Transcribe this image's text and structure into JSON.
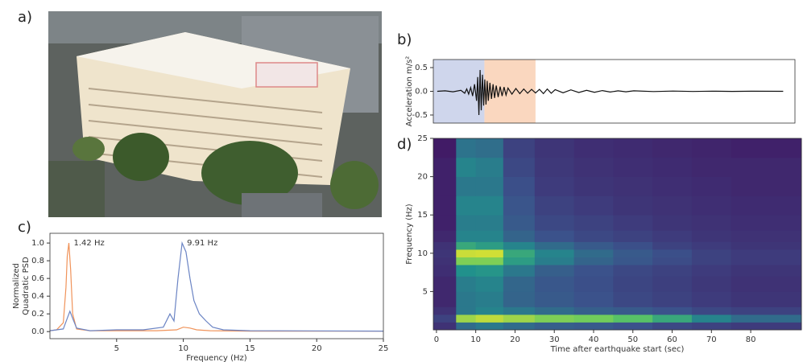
{
  "chart_data": [
    {
      "type": "image",
      "panel_label": "a)"
    },
    {
      "type": "line",
      "panel_label": "b)",
      "ylabel": "Acceleration m/s²",
      "xlim": [
        -1,
        91
      ],
      "ylim": [
        -0.67,
        0.67
      ],
      "yticks": [
        0.5,
        {
          "value": 0,
          "label": "0.0"
        },
        -0.5
      ],
      "spans": [
        {
          "x": [
            -1,
            12
          ],
          "color": "#cfd6ec"
        },
        {
          "x": [
            12,
            25
          ],
          "color": "#fad7bf"
        }
      ],
      "series": [
        {
          "color": "#111111",
          "x": [
            0,
            2,
            4,
            6,
            7,
            7.5,
            8,
            8.5,
            9,
            9.5,
            10,
            10.3,
            10.6,
            10.9,
            11.2,
            11.5,
            11.8,
            12.1,
            12.4,
            12.7,
            13,
            13.4,
            13.8,
            14.2,
            14.6,
            15,
            15.5,
            16,
            16.5,
            17,
            17.5,
            18,
            19,
            20,
            21,
            22,
            23,
            24,
            25,
            26,
            27,
            28,
            29,
            30,
            32,
            34,
            36,
            38,
            40,
            42,
            44,
            46,
            48,
            50,
            55,
            60,
            65,
            70,
            75,
            80,
            88
          ],
          "values": [
            0,
            0.01,
            -0.01,
            0.02,
            -0.04,
            0.05,
            -0.06,
            0.08,
            -0.1,
            0.15,
            -0.2,
            0.3,
            -0.5,
            0.45,
            -0.4,
            0.35,
            -0.3,
            0.25,
            -0.28,
            0.22,
            -0.2,
            0.18,
            -0.16,
            0.15,
            -0.14,
            0.12,
            -0.12,
            0.1,
            -0.1,
            0.09,
            -0.08,
            0.07,
            -0.06,
            0.06,
            -0.05,
            0.05,
            -0.04,
            0.04,
            -0.035,
            0.04,
            -0.05,
            0.05,
            -0.04,
            0.035,
            -0.03,
            0.03,
            -0.025,
            0.02,
            -0.02,
            0.015,
            -0.015,
            0.01,
            -0.01,
            0.01,
            -0.005,
            0.005,
            -0.003,
            0.003,
            -0.002,
            0.002,
            0
          ]
        }
      ]
    },
    {
      "type": "line",
      "panel_label": "c)",
      "ylabel": [
        "Normalized",
        "Quadratic PSD"
      ],
      "xlabel": "Frequency (Hz)",
      "xlim": [
        0,
        25
      ],
      "ylim": [
        -0.08,
        1.11
      ],
      "xticks": [
        5,
        10,
        15,
        20,
        25
      ],
      "yticks": [
        {
          "value": 0,
          "label": "0.0"
        },
        0.2,
        0.4,
        0.6,
        0.8,
        {
          "value": 1,
          "label": "1.0"
        }
      ],
      "series": [
        {
          "color": "#f0935a",
          "annotation": "1.42 Hz",
          "x": [
            0,
            0.5,
            1.0,
            1.2,
            1.3,
            1.42,
            1.55,
            1.7,
            2.0,
            3,
            5,
            8,
            9.5,
            10,
            10.5,
            11,
            12,
            15,
            25
          ],
          "values": [
            0.01,
            0.02,
            0.1,
            0.5,
            0.85,
            1.0,
            0.7,
            0.2,
            0.03,
            0.01,
            0.01,
            0.01,
            0.02,
            0.05,
            0.04,
            0.02,
            0.01,
            0.005,
            0.005
          ]
        },
        {
          "color": "#6b84c4",
          "annotation": "9.91 Hz",
          "x": [
            0,
            1,
            1.3,
            1.5,
            1.7,
            2,
            3,
            5,
            7,
            8.5,
            9,
            9.3,
            9.6,
            9.91,
            10.2,
            10.5,
            10.8,
            11.2,
            11.7,
            12.2,
            13,
            15,
            25
          ],
          "values": [
            0.01,
            0.03,
            0.15,
            0.23,
            0.15,
            0.04,
            0.01,
            0.02,
            0.02,
            0.05,
            0.2,
            0.12,
            0.6,
            1.0,
            0.9,
            0.6,
            0.35,
            0.2,
            0.12,
            0.05,
            0.02,
            0.01,
            0.005
          ]
        }
      ]
    },
    {
      "type": "heatmap",
      "panel_label": "d)",
      "xlabel": "Time after earthquake start (sec)",
      "ylabel": "Frequency (Hz)",
      "xlim": [
        -0.8,
        92.9
      ],
      "ylim": [
        0,
        25
      ],
      "xticks": [
        0,
        10,
        20,
        30,
        40,
        50,
        60,
        70,
        80
      ],
      "yticks": [
        5,
        10,
        15,
        20,
        25
      ],
      "colormap": "viridis",
      "zlim": [
        0,
        1
      ],
      "x_edges": [
        -0.8,
        5,
        10,
        17,
        25,
        35,
        45,
        55,
        65,
        75,
        92.9
      ],
      "y_edges": [
        0,
        1,
        2,
        3,
        5,
        7,
        8.5,
        9.5,
        10.5,
        11.5,
        13,
        15,
        17.5,
        20,
        22.5,
        25
      ],
      "z": [
        [
          0.15,
          0.35,
          0.4,
          0.35,
          0.3,
          0.28,
          0.25,
          0.22,
          0.2,
          0.18
        ],
        [
          0.2,
          0.85,
          0.9,
          0.85,
          0.8,
          0.78,
          0.72,
          0.6,
          0.45,
          0.35
        ],
        [
          0.15,
          0.4,
          0.45,
          0.4,
          0.35,
          0.3,
          0.28,
          0.25,
          0.22,
          0.2
        ],
        [
          0.12,
          0.4,
          0.42,
          0.32,
          0.28,
          0.25,
          0.22,
          0.2,
          0.18,
          0.16
        ],
        [
          0.12,
          0.42,
          0.45,
          0.33,
          0.27,
          0.24,
          0.21,
          0.19,
          0.17,
          0.15
        ],
        [
          0.14,
          0.5,
          0.52,
          0.4,
          0.3,
          0.25,
          0.22,
          0.2,
          0.18,
          0.16
        ],
        [
          0.15,
          0.8,
          0.8,
          0.55,
          0.42,
          0.32,
          0.27,
          0.23,
          0.2,
          0.18
        ],
        [
          0.16,
          0.92,
          0.93,
          0.6,
          0.45,
          0.35,
          0.28,
          0.24,
          0.2,
          0.18
        ],
        [
          0.15,
          0.6,
          0.55,
          0.45,
          0.35,
          0.28,
          0.24,
          0.2,
          0.18,
          0.16
        ],
        [
          0.12,
          0.45,
          0.45,
          0.32,
          0.25,
          0.22,
          0.2,
          0.18,
          0.16,
          0.15
        ],
        [
          0.1,
          0.42,
          0.42,
          0.28,
          0.22,
          0.2,
          0.18,
          0.16,
          0.15,
          0.14
        ],
        [
          0.1,
          0.45,
          0.45,
          0.26,
          0.2,
          0.18,
          0.16,
          0.15,
          0.14,
          0.13
        ],
        [
          0.1,
          0.4,
          0.4,
          0.24,
          0.18,
          0.16,
          0.15,
          0.14,
          0.13,
          0.12
        ],
        [
          0.1,
          0.45,
          0.42,
          0.22,
          0.17,
          0.15,
          0.14,
          0.13,
          0.12,
          0.12
        ],
        [
          0.08,
          0.38,
          0.36,
          0.2,
          0.16,
          0.14,
          0.13,
          0.12,
          0.11,
          0.1
        ]
      ]
    }
  ]
}
